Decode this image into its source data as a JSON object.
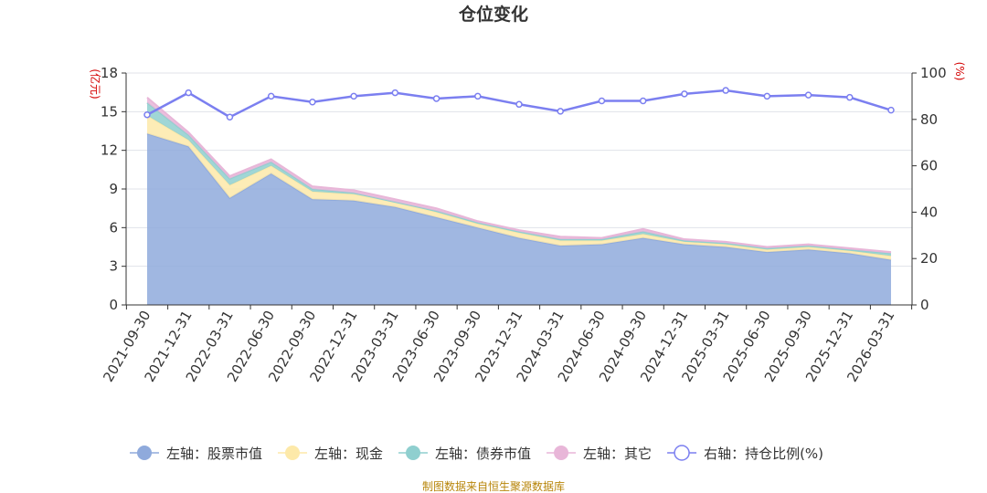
{
  "chart_data": {
    "type": "area",
    "title": "仓位变化",
    "left_axis_unit": "(亿元)",
    "right_axis_unit": "(%)",
    "left_ylim": [
      0,
      18
    ],
    "left_ticks": [
      0,
      3,
      6,
      9,
      12,
      15,
      18
    ],
    "right_ylim": [
      0,
      100
    ],
    "right_ticks": [
      0,
      20,
      40,
      60,
      80,
      100
    ],
    "grid": true,
    "legend_position": "bottom",
    "categories": [
      "2021-09-30",
      "2021-12-31",
      "2022-03-31",
      "2022-06-30",
      "2022-09-30",
      "2022-12-31",
      "2023-03-31",
      "2023-06-30",
      "2023-09-30",
      "2023-12-31",
      "2024-03-31",
      "2024-06-30",
      "2024-09-30",
      "2024-12-31",
      "2025-03-31",
      "2025-06-30",
      "2025-09-30",
      "2025-12-31",
      "2026-03-31"
    ],
    "series": [
      {
        "name": "左轴：股票市值",
        "axis": "left",
        "color": "#8faadc",
        "values": [
          13.3,
          12.3,
          8.3,
          10.2,
          8.2,
          8.1,
          7.6,
          6.8,
          6.0,
          5.2,
          4.6,
          4.7,
          5.2,
          4.7,
          4.5,
          4.1,
          4.3,
          4.0,
          3.5
        ]
      },
      {
        "name": "左轴：现金",
        "axis": "left",
        "color": "#fde9a9",
        "values": [
          1.4,
          0.5,
          1.0,
          0.6,
          0.6,
          0.5,
          0.4,
          0.4,
          0.3,
          0.4,
          0.4,
          0.3,
          0.3,
          0.2,
          0.2,
          0.2,
          0.2,
          0.2,
          0.3
        ]
      },
      {
        "name": "左轴：债券市值",
        "axis": "left",
        "color": "#8fcfcf",
        "values": [
          1.0,
          0.4,
          0.5,
          0.3,
          0.2,
          0.1,
          0.0,
          0.1,
          0.1,
          0.1,
          0.1,
          0.1,
          0.2,
          0.1,
          0.1,
          0.1,
          0.1,
          0.1,
          0.2
        ]
      },
      {
        "name": "左轴：其它",
        "axis": "left",
        "color": "#e8b6d8",
        "values": [
          0.4,
          0.2,
          0.2,
          0.2,
          0.2,
          0.2,
          0.2,
          0.2,
          0.1,
          0.1,
          0.2,
          0.1,
          0.2,
          0.1,
          0.1,
          0.1,
          0.1,
          0.1,
          0.1
        ]
      },
      {
        "name": "右轴：持仓比例(%)",
        "axis": "right",
        "color": "#7b7ff0",
        "values": [
          82,
          91.5,
          81,
          90,
          87.5,
          90,
          91.5,
          89,
          90,
          86.5,
          83.5,
          88,
          88,
          91,
          92.5,
          90,
          90.5,
          89.5,
          84
        ]
      }
    ]
  },
  "source_note": "制图数据来自恒生聚源数据库"
}
